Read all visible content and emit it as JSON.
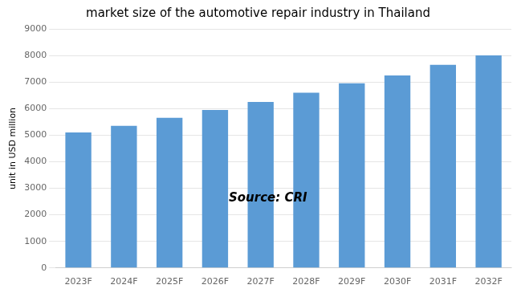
{
  "chart_data": {
    "type": "bar",
    "title": "market size of the automotive repair industry in Thailand",
    "categories": [
      "2023F",
      "2024F",
      "2025F",
      "2026F",
      "2027F",
      "2028F",
      "2029F",
      "2030F",
      "2031F",
      "2032F"
    ],
    "values": [
      5100,
      5350,
      5650,
      5950,
      6250,
      6600,
      6950,
      7250,
      7650,
      8000
    ],
    "color": "#5b9bd5",
    "ylabel": "unit in USD million",
    "ylim": [
      0,
      9000
    ],
    "yticks": [
      0,
      1000,
      2000,
      3000,
      4000,
      5000,
      6000,
      7000,
      8000,
      9000
    ],
    "grid": true,
    "annotation": "Source: CRI"
  }
}
